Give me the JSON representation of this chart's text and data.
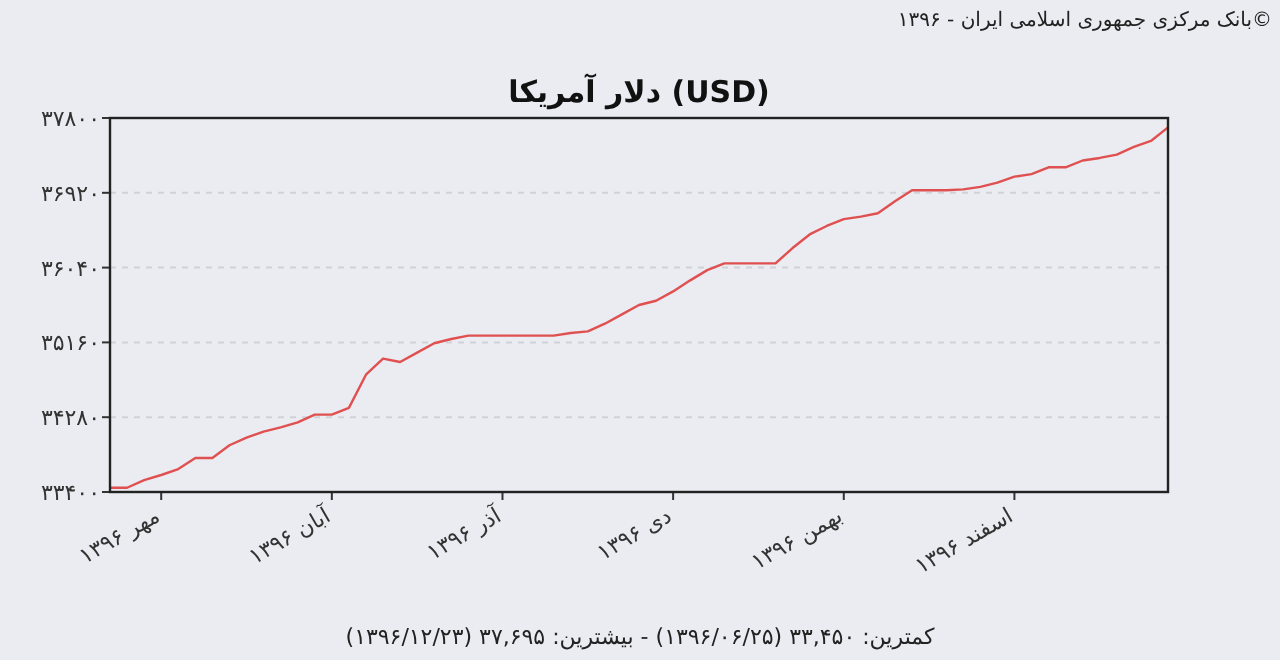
{
  "chart_data": {
    "type": "line",
    "title": "دلار آمریکا (USD)",
    "annotations": [
      "بانک مرکزی جمهوری اسلامی ایران - ۱۳۹۶©",
      "کمترین: ۳۳,۴۵۰ (۱۳۹۶/۰۶/۲۵) - بیشترین: ۳۷,۶۹۵ (۱۳۹۶/۱۲/۲۳)"
    ],
    "categories": [
      null,
      null,
      null,
      "مهر ۱۳۹۶",
      null,
      null,
      null,
      null,
      null,
      null,
      null,
      null,
      null,
      "آبان ۱۳۹۶",
      null,
      null,
      null,
      null,
      null,
      null,
      null,
      null,
      null,
      "آذر ۱۳۹۶",
      null,
      null,
      null,
      null,
      null,
      null,
      null,
      null,
      null,
      "دی ۱۳۹۶",
      null,
      null,
      null,
      null,
      null,
      null,
      null,
      null,
      null,
      "بهمن ۱۳۹۶",
      null,
      null,
      null,
      null,
      null,
      null,
      null,
      null,
      null,
      "اسفند ۱۳۹۶",
      null,
      null,
      null,
      null,
      null,
      null,
      null,
      null,
      null
    ],
    "series": [
      {
        "color": "#e05050",
        "values": [
          33450,
          33450,
          33540,
          33600,
          33670,
          33800,
          33800,
          33950,
          34040,
          34110,
          34160,
          34220,
          34310,
          34310,
          34390,
          34780,
          34970,
          34930,
          35040,
          35150,
          35200,
          35240,
          35240,
          35240,
          35240,
          35240,
          35240,
          35270,
          35290,
          35380,
          35490,
          35600,
          35650,
          35760,
          35890,
          36010,
          36090,
          36090,
          36090,
          36090,
          36270,
          36430,
          36530,
          36610,
          36640,
          36680,
          36820,
          36950,
          36950,
          36950,
          36960,
          36990,
          37040,
          37110,
          37140,
          37220,
          37220,
          37300,
          37330,
          37370,
          37460,
          37530,
          37690
        ]
      }
    ],
    "ylim": [
      33400,
      37800
    ],
    "yticks": [
      {
        "value": 33400,
        "label": "۳۳۴۰۰"
      },
      {
        "value": 34280,
        "label": "۳۴۲۸۰"
      },
      {
        "value": 35160,
        "label": "۳۵۱۶۰"
      },
      {
        "value": 36040,
        "label": "۳۶۰۴۰"
      },
      {
        "value": 36920,
        "label": "۳۶۹۲۰"
      },
      {
        "value": 37800,
        "label": "۳۷۸۰۰"
      }
    ],
    "grid": "y",
    "marker": "none",
    "line_style": "solid"
  }
}
